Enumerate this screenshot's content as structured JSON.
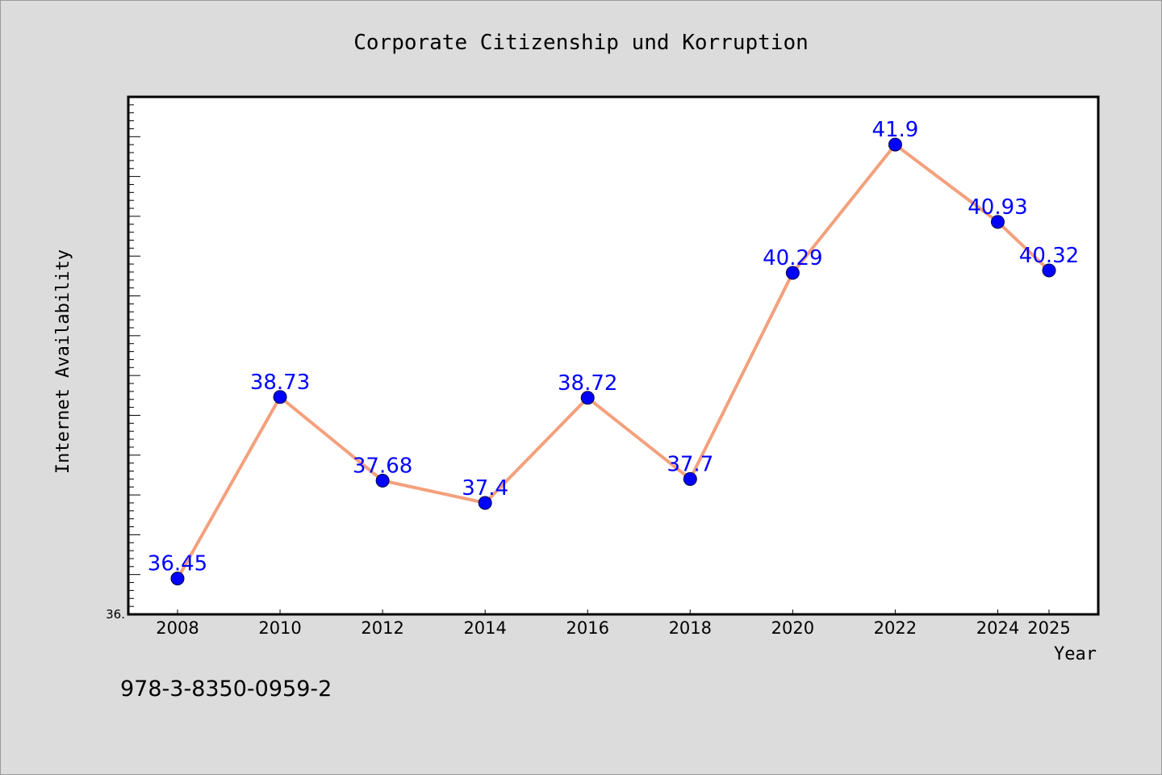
{
  "colors": {
    "background": "#dcdcdc",
    "plot_background": "#ffffff",
    "line": "#f4a07c",
    "marker": "#0000ff",
    "data_label": "#0000ff"
  },
  "footer": {
    "isbn": "978-3-8350-0959-2"
  },
  "chart_data": {
    "type": "line",
    "title": "Corporate Citizenship und Korruption",
    "xlabel": "Year",
    "ylabel": "Internet Availability",
    "x": [
      "2008",
      "2010",
      "2012",
      "2014",
      "2016",
      "2018",
      "2020",
      "2022",
      "2024",
      "2025"
    ],
    "series": [
      {
        "values": [
          36.45,
          38.73,
          37.68,
          37.4,
          38.72,
          37.7,
          40.29,
          41.9,
          40.93,
          40.32
        ],
        "data_labels": [
          "36.45",
          "38.73",
          "37.68",
          "37.4",
          "38.72",
          "37.7",
          "40.29",
          "41.9",
          "40.93",
          "40.32"
        ]
      }
    ],
    "ylim": [
      36.0,
      42.5
    ],
    "y_tick_labels": [
      {
        "value": 36.0,
        "label": "36."
      }
    ],
    "y_minor_step": 0.1,
    "grid": false,
    "markers": "circle",
    "show_data_labels": true
  }
}
